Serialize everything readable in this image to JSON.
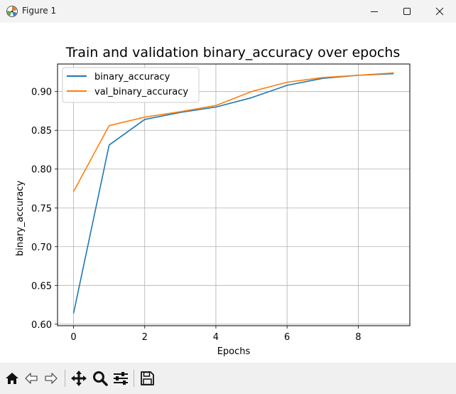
{
  "window": {
    "title": "Figure 1",
    "app_icon": "matplotlib-figure-icon",
    "controls": [
      "minimize-icon",
      "maximize-icon",
      "close-icon"
    ]
  },
  "toolbar": {
    "buttons": [
      "home-icon",
      "back-arrow-icon",
      "forward-arrow-icon",
      "pan-icon",
      "zoom-icon",
      "configure-subplots-icon",
      "save-icon"
    ]
  },
  "chart_data": {
    "type": "line",
    "title": "Train and validation binary_accuracy over epochs",
    "xlabel": "Epochs",
    "ylabel": "binary_accuracy",
    "x": [
      0,
      1,
      2,
      3,
      4,
      5,
      6,
      7,
      8,
      9
    ],
    "xlim": [
      -0.45,
      9.45
    ],
    "ylim": [
      0.598,
      0.9355
    ],
    "xticks": [
      0,
      2,
      4,
      6,
      8
    ],
    "yticks": [
      0.6,
      0.65,
      0.7,
      0.75,
      0.8,
      0.85,
      0.9
    ],
    "ytick_labels": [
      "0.60",
      "0.65",
      "0.70",
      "0.75",
      "0.80",
      "0.85",
      "0.90"
    ],
    "grid": true,
    "legend_position": "top-left",
    "series": [
      {
        "name": "binary_accuracy",
        "color": "#1f77b4",
        "values": [
          0.614,
          0.831,
          0.864,
          0.873,
          0.88,
          0.892,
          0.908,
          0.917,
          0.921,
          0.923
        ]
      },
      {
        "name": "val_binary_accuracy",
        "color": "#ff7f0e",
        "values": [
          0.771,
          0.856,
          0.867,
          0.874,
          0.882,
          0.9,
          0.912,
          0.918,
          0.921,
          0.924
        ]
      }
    ]
  }
}
